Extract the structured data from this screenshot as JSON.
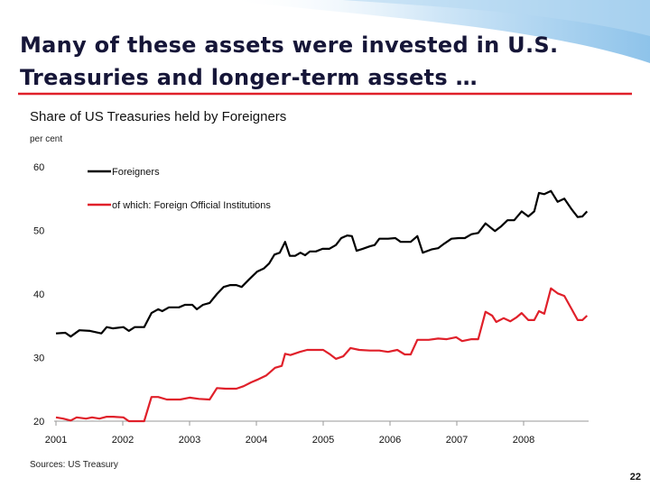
{
  "header": {
    "title": [
      "Many of these assets were invested in U.S.",
      "Treasuries and longer-term assets …"
    ]
  },
  "chart_data": {
    "type": "line",
    "title": "Share of US Treasuries held by Foreigners",
    "y_label": "per cent",
    "xlim": [
      2001,
      2009
    ],
    "xticks": [
      2001,
      2002,
      2003,
      2004,
      2005,
      2006,
      2007,
      2008
    ],
    "ylim": [
      20,
      60
    ],
    "yticks": [
      20,
      30,
      40,
      50,
      60
    ],
    "grid": false,
    "legend": "upper left",
    "series": [
      {
        "name": "Foreigners",
        "color": "#000000",
        "x": [
          2001.0,
          2001.14,
          2001.22,
          2001.35,
          2001.51,
          2001.68,
          2001.76,
          2001.85,
          2002.01,
          2002.09,
          2002.18,
          2002.32,
          2002.43,
          2002.53,
          2002.59,
          2002.69,
          2002.84,
          2002.93,
          2003.04,
          2003.11,
          2003.2,
          2003.3,
          2003.41,
          2003.51,
          2003.61,
          2003.7,
          2003.78,
          2003.89,
          2004.01,
          2004.11,
          2004.19,
          2004.27,
          2004.35,
          2004.43,
          2004.5,
          2004.58,
          2004.66,
          2004.73,
          2004.8,
          2004.89,
          2004.99,
          2005.09,
          2005.19,
          2005.27,
          2005.36,
          2005.43,
          2005.5,
          2005.59,
          2005.7,
          2005.77,
          2005.84,
          2005.97,
          2006.08,
          2006.16,
          2006.31,
          2006.41,
          2006.49,
          2006.62,
          2006.72,
          2006.81,
          2006.92,
          2007.03,
          2007.12,
          2007.22,
          2007.32,
          2007.43,
          2007.57,
          2007.66,
          2007.76,
          2007.86,
          2007.97,
          2008.07,
          2008.16,
          2008.23,
          2008.31,
          2008.41,
          2008.51,
          2008.61,
          2008.72,
          2008.81,
          2008.88,
          2008.95
        ],
        "values": [
          33.8,
          33.9,
          33.3,
          34.3,
          34.2,
          33.8,
          34.8,
          34.6,
          34.8,
          34.2,
          34.8,
          34.8,
          37.0,
          37.6,
          37.3,
          37.9,
          37.9,
          38.3,
          38.3,
          37.6,
          38.3,
          38.6,
          40.0,
          41.1,
          41.4,
          41.4,
          41.1,
          42.3,
          43.5,
          44.0,
          44.8,
          46.2,
          46.5,
          48.2,
          46.0,
          46.0,
          46.5,
          46.1,
          46.7,
          46.7,
          47.1,
          47.1,
          47.7,
          48.8,
          49.2,
          49.1,
          46.8,
          47.1,
          47.5,
          47.7,
          48.7,
          48.7,
          48.8,
          48.2,
          48.2,
          49.1,
          46.5,
          47.0,
          47.2,
          47.9,
          48.7,
          48.8,
          48.8,
          49.4,
          49.6,
          51.1,
          49.9,
          50.6,
          51.6,
          51.6,
          53.0,
          52.2,
          53.0,
          55.9,
          55.7,
          56.2,
          54.5,
          55.0,
          53.3,
          52.1,
          52.2,
          53.0
        ]
      },
      {
        "name": "of which: Foreign Official Institutions",
        "color": "#e0202a",
        "x": [
          2001.0,
          2001.11,
          2001.22,
          2001.31,
          2001.45,
          2001.54,
          2001.65,
          2001.76,
          2001.85,
          2002.01,
          2002.09,
          2002.32,
          2002.43,
          2002.53,
          2002.66,
          2002.86,
          2003.0,
          2003.14,
          2003.3,
          2003.41,
          2003.54,
          2003.7,
          2003.81,
          2003.92,
          2004.01,
          2004.15,
          2004.28,
          2004.38,
          2004.43,
          2004.51,
          2004.65,
          2004.76,
          2004.89,
          2005.0,
          2005.09,
          2005.19,
          2005.3,
          2005.41,
          2005.54,
          2005.7,
          2005.84,
          2005.97,
          2006.11,
          2006.22,
          2006.31,
          2006.41,
          2006.58,
          2006.72,
          2006.85,
          2006.99,
          2007.08,
          2007.22,
          2007.32,
          2007.43,
          2007.53,
          2007.59,
          2007.7,
          2007.8,
          2007.89,
          2007.97,
          2008.07,
          2008.16,
          2008.23,
          2008.31,
          2008.41,
          2008.51,
          2008.61,
          2008.72,
          2008.81,
          2008.88,
          2008.95
        ],
        "values": [
          20.6,
          20.4,
          20.1,
          20.6,
          20.4,
          20.6,
          20.4,
          20.7,
          20.7,
          20.6,
          20.0,
          20.0,
          23.8,
          23.8,
          23.4,
          23.4,
          23.7,
          23.5,
          23.4,
          25.2,
          25.1,
          25.1,
          25.5,
          26.1,
          26.5,
          27.2,
          28.4,
          28.7,
          30.6,
          30.4,
          30.9,
          31.2,
          31.2,
          31.2,
          30.6,
          29.8,
          30.2,
          31.5,
          31.2,
          31.1,
          31.1,
          30.9,
          31.2,
          30.5,
          30.5,
          32.8,
          32.8,
          33.0,
          32.9,
          33.2,
          32.6,
          32.9,
          32.9,
          37.2,
          36.6,
          35.6,
          36.2,
          35.7,
          36.3,
          37.0,
          35.9,
          35.9,
          37.3,
          36.9,
          40.9,
          40.1,
          39.7,
          37.6,
          35.9,
          35.9,
          36.6
        ]
      }
    ]
  },
  "footer": {
    "source": "Sources: US Treasury",
    "page_number": "22"
  }
}
